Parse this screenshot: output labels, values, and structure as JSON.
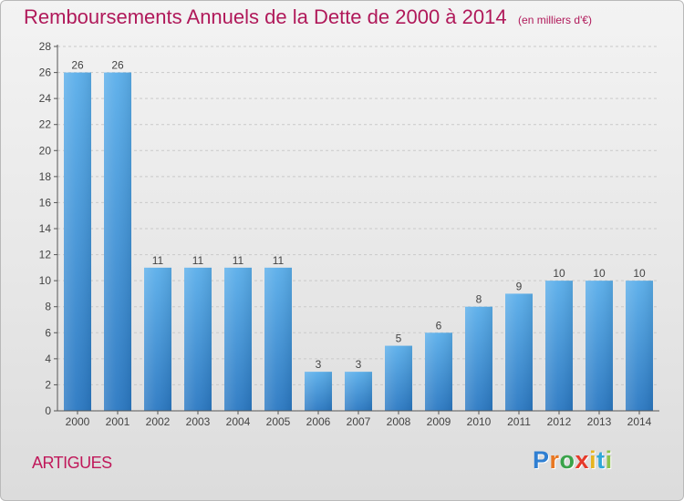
{
  "chart_data": {
    "type": "bar",
    "title": "Remboursements Annuels de la Dette de 2000 à 2014",
    "subtitle": "(en milliers d'€)",
    "categories": [
      "2000",
      "2001",
      "2002",
      "2003",
      "2004",
      "2005",
      "2006",
      "2007",
      "2008",
      "2009",
      "2010",
      "2011",
      "2012",
      "2013",
      "2014"
    ],
    "values": [
      26,
      26,
      11,
      11,
      11,
      11,
      3,
      3,
      5,
      6,
      8,
      9,
      10,
      10,
      10
    ],
    "data_labels": [
      "26",
      "26",
      "11",
      "11",
      "11",
      "11",
      "3",
      "3",
      "5",
      "6",
      "8",
      "9",
      "10",
      "10",
      "10"
    ],
    "xlabel": "",
    "ylabel": "",
    "ylim": [
      0,
      28
    ],
    "yticks": [
      0,
      2,
      4,
      6,
      8,
      10,
      12,
      14,
      16,
      18,
      20,
      22,
      24,
      26,
      28
    ],
    "grid": "horizontal dashed",
    "bar_color": "#3a8fd6"
  },
  "footer": {
    "commune": "ARTIGUES"
  },
  "brand": {
    "letters": [
      "P",
      "r",
      "o",
      "x",
      "i",
      "t",
      "i"
    ],
    "colors": [
      "#2f7fd2",
      "#e87722",
      "#3aa34a",
      "#e63a2a",
      "#e6b422",
      "#2fa7d8",
      "#8bc34a"
    ]
  }
}
